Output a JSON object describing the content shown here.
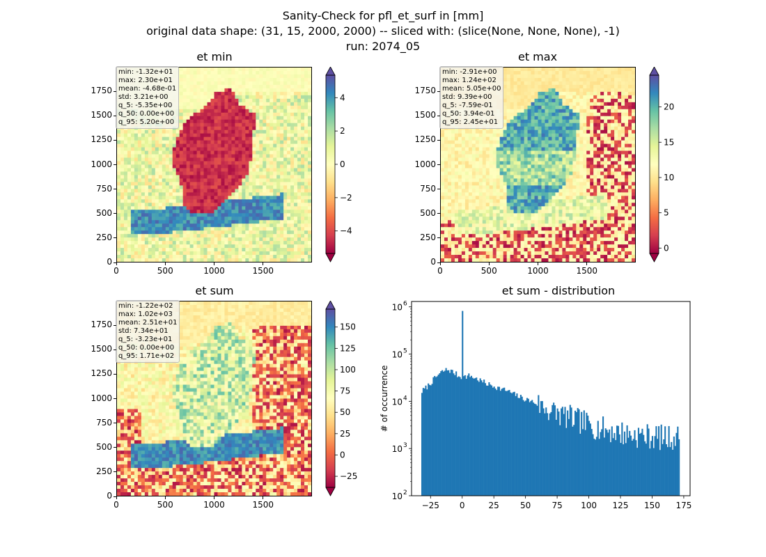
{
  "figure": {
    "title_line1": "Sanity-Check for pfl_et_surf in [mm]",
    "title_line2": "original data shape: (31, 15, 2000, 2000) -- sliced with: (slice(None, None, None), -1)",
    "title_line3": "run: 2074_05"
  },
  "colors": {
    "colormap": "Spectral",
    "histogram_bar": "#1f77b4"
  },
  "panels": [
    {
      "title": "et min",
      "x_ticks": [
        "0",
        "500",
        "1000",
        "1500"
      ],
      "y_ticks": [
        "0",
        "250",
        "500",
        "750",
        "1000",
        "1250",
        "1500",
        "1750"
      ],
      "colorbar": {
        "min": -5.35,
        "max": 5.35,
        "extend": "both",
        "ticks": [
          "4",
          "2",
          "0",
          "−2",
          "−4"
        ],
        "tick_values": [
          4,
          2,
          0,
          -2,
          -4
        ]
      },
      "stats": [
        "min: -1.32e+01",
        "max: 2.30e+01",
        "mean: -4.68e-01",
        "std: 3.21e+00",
        "q_5: -5.35e+00",
        "q_50: 0.00e+00",
        "q_95: 5.20e+00"
      ]
    },
    {
      "title": "et max",
      "x_ticks": [
        "0",
        "500",
        "1000",
        "1500"
      ],
      "y_ticks": [
        "0",
        "250",
        "500",
        "750",
        "1000",
        "1250",
        "1500",
        "1750"
      ],
      "colorbar": {
        "min": -0.76,
        "max": 24.5,
        "extend": "both",
        "ticks": [
          "20",
          "15",
          "10",
          "5",
          "0"
        ],
        "tick_values": [
          20,
          15,
          10,
          5,
          0
        ]
      },
      "stats": [
        "min: -2.91e+00",
        "max: 1.24e+02",
        "mean: 5.05e+00",
        "std: 9.39e+00",
        "q_5: -7.59e-01",
        "q_50: 3.94e-01",
        "q_95: 2.45e+01"
      ]
    },
    {
      "title": "et sum",
      "x_ticks": [
        "0",
        "500",
        "1000",
        "1500"
      ],
      "y_ticks": [
        "0",
        "250",
        "500",
        "750",
        "1000",
        "1250",
        "1500",
        "1750"
      ],
      "colorbar": {
        "min": -38,
        "max": 171,
        "extend": "both",
        "ticks": [
          "150",
          "125",
          "100",
          "75",
          "50",
          "25",
          "0",
          "−25"
        ],
        "tick_values": [
          150,
          125,
          100,
          75,
          50,
          25,
          0,
          -25
        ]
      },
      "stats": [
        "min: -1.22e+02",
        "max: 1.02e+03",
        "mean: 2.51e+01",
        "std: 7.34e+01",
        "q_5: -3.23e+01",
        "q_50: 0.00e+00",
        "q_95: 1.71e+02"
      ]
    }
  ],
  "histogram": {
    "title": "et sum - distribution",
    "ylabel": "# of occurrence",
    "x_ticks": [
      "−25",
      "0",
      "25",
      "50",
      "75",
      "100",
      "125",
      "150",
      "175"
    ],
    "x_tick_values": [
      -25,
      0,
      25,
      50,
      75,
      100,
      125,
      150,
      175
    ],
    "y_ticks": [
      "10",
      "10",
      "10",
      "10",
      "10"
    ],
    "y_tick_exponents": [
      "6",
      "5",
      "4",
      "3",
      "2"
    ]
  },
  "chart_data": {
    "type": "bar",
    "title": "et sum - distribution",
    "xlabel": "",
    "ylabel": "# of occurrence",
    "xlim": [
      -40,
      180
    ],
    "ylim": [
      100,
      1300000
    ],
    "yscale": "log",
    "bin_range": [
      -32.3,
      171
    ],
    "bin_width": 1.0,
    "spike": {
      "x": 0,
      "value": 820000
    },
    "profile": [
      [
        -32,
        16000
      ],
      [
        -28,
        20000
      ],
      [
        -24,
        26000
      ],
      [
        -20,
        34000
      ],
      [
        -16,
        42000
      ],
      [
        -12,
        47000
      ],
      [
        -9,
        44000
      ],
      [
        -5,
        38000
      ],
      [
        -2,
        33000
      ],
      [
        2,
        33000
      ],
      [
        6,
        35000
      ],
      [
        10,
        31000
      ],
      [
        15,
        27000
      ],
      [
        20,
        23000
      ],
      [
        25,
        21000
      ],
      [
        30,
        18500
      ],
      [
        35,
        17000
      ],
      [
        40,
        14500
      ],
      [
        45,
        12500
      ],
      [
        50,
        11000
      ],
      [
        55,
        10000
      ],
      [
        60,
        8500
      ],
      [
        65,
        7500
      ],
      [
        70,
        6200
      ],
      [
        75,
        5600
      ],
      [
        80,
        5000
      ],
      [
        85,
        4500
      ],
      [
        90,
        4000
      ],
      [
        95,
        3600
      ],
      [
        100,
        3200
      ],
      [
        110,
        2600
      ],
      [
        120,
        2300
      ],
      [
        130,
        2000
      ],
      [
        140,
        1900
      ],
      [
        150,
        1800
      ],
      [
        160,
        1700
      ],
      [
        171,
        1700
      ]
    ]
  }
}
